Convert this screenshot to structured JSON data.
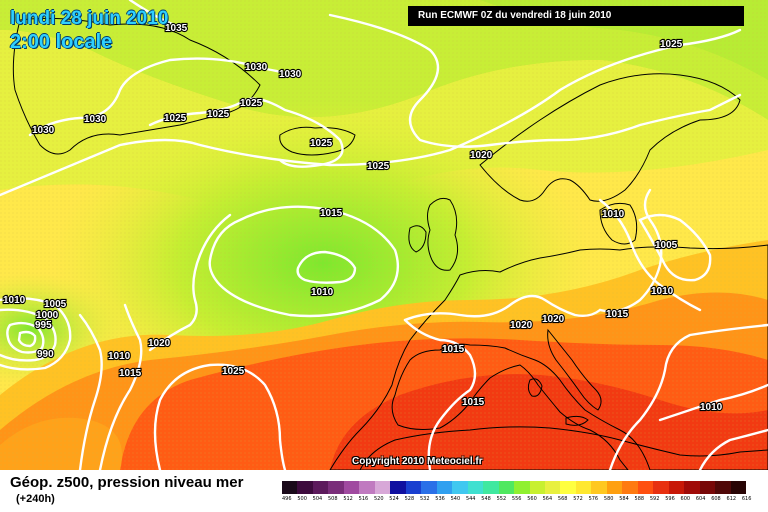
{
  "header": {
    "date": "lundi 28 juin 2010",
    "time": "2:00 locale",
    "run": "Run ECMWF 0Z du vendredi 18 juin 2010"
  },
  "copyright": "Copyright 2010 Meteociel.fr",
  "legend": {
    "title": "Géop. z500, pression niveau mer",
    "subtitle": "(+240h)",
    "scale_labels": [
      "496",
      "500",
      "504",
      "508",
      "512",
      "516",
      "520",
      "524",
      "528",
      "532",
      "536",
      "540",
      "544",
      "548",
      "552",
      "556",
      "560",
      "564",
      "568",
      "572",
      "576",
      "580",
      "584",
      "588",
      "592",
      "596",
      "600",
      "604",
      "608",
      "612",
      "616"
    ],
    "scale_colors": [
      "#1a0a1a",
      "#3d0b3d",
      "#5c1a5c",
      "#7a2e7a",
      "#a04aa0",
      "#c07ac0",
      "#d8a8d8",
      "#1010a0",
      "#1a40d0",
      "#2a70e8",
      "#30a0f0",
      "#40c8f0",
      "#40e0d0",
      "#40e8a0",
      "#50e860",
      "#90f030",
      "#c8f030",
      "#e8f040",
      "#ffff40",
      "#ffe830",
      "#ffc820",
      "#ffa010",
      "#ff7a10",
      "#ff5010",
      "#e83010",
      "#c81808",
      "#a00a08",
      "#780808",
      "#500808",
      "#280404"
    ]
  },
  "colors": {
    "ocean_shading": "#ffe85a",
    "isobar": "#ffffff",
    "coastline": "#000000"
  },
  "isobars": [
    {
      "label": "1035"
    },
    {
      "label": "1030"
    },
    {
      "label": "1030"
    },
    {
      "label": "1030"
    },
    {
      "label": "1030"
    },
    {
      "label": "1025"
    },
    {
      "label": "1025"
    },
    {
      "label": "1025"
    },
    {
      "label": "1025"
    },
    {
      "label": "1025"
    },
    {
      "label": "1025"
    },
    {
      "label": "1025"
    },
    {
      "label": "1020"
    },
    {
      "label": "1020"
    },
    {
      "label": "1020"
    },
    {
      "label": "1020"
    },
    {
      "label": "1015"
    },
    {
      "label": "1015"
    },
    {
      "label": "1015"
    },
    {
      "label": "1015"
    },
    {
      "label": "1015"
    },
    {
      "label": "1010"
    },
    {
      "label": "1010"
    },
    {
      "label": "1010"
    },
    {
      "label": "1010"
    },
    {
      "label": "1010"
    },
    {
      "label": "1010"
    },
    {
      "label": "1005"
    },
    {
      "label": "1005"
    },
    {
      "label": "1000"
    },
    {
      "label": "995"
    },
    {
      "label": "990"
    }
  ]
}
